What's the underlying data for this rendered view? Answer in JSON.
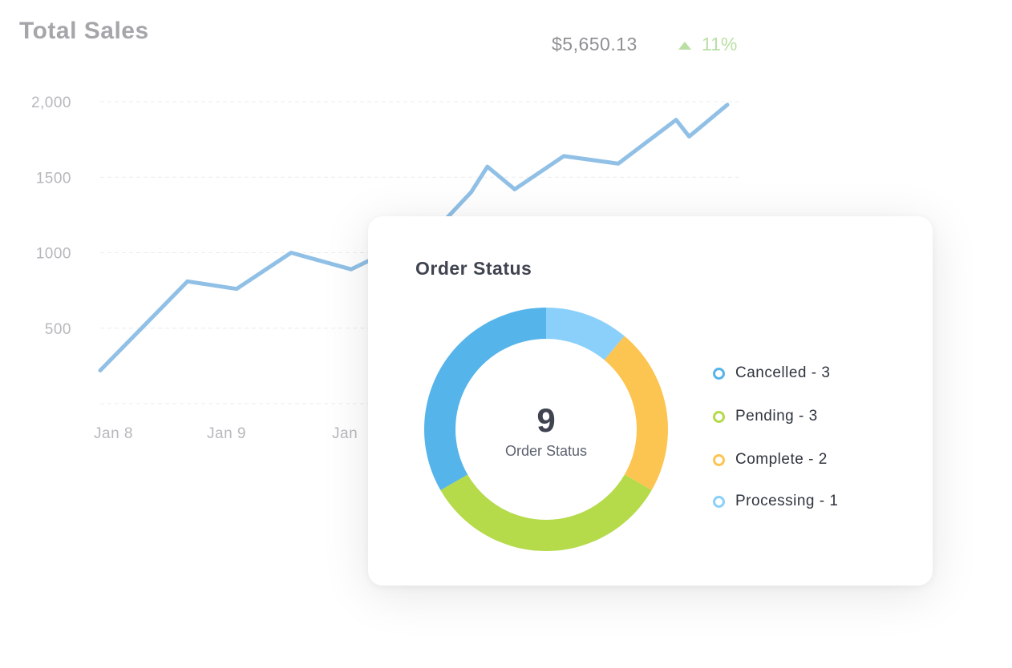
{
  "sales": {
    "title": "Total Sales",
    "total": "$5,650.13",
    "change": "11%",
    "line_color": "#91c0e6",
    "trend_color": "#b9dfa4"
  },
  "order_status": {
    "title": "Order Status",
    "center_value": "9",
    "center_label": "Order Status",
    "legend": [
      {
        "label": "Cancelled - 3",
        "color": "#55b4ea"
      },
      {
        "label": "Pending - 3",
        "color": "#b5da4a"
      },
      {
        "label": "Complete - 2",
        "color": "#fcc451"
      },
      {
        "label": "Processing - 1",
        "color": "#8ad0fb"
      }
    ]
  },
  "chart_data": [
    {
      "type": "line",
      "title": "Total Sales",
      "y_ticks": [
        "2,000",
        "1500",
        "1000",
        "500"
      ],
      "y_tick_values": [
        2000,
        1500,
        1000,
        500
      ],
      "ylim": [
        0,
        2000
      ],
      "x_tick_labels": [
        "Jan 8",
        "Jan 9",
        "Jan"
      ],
      "grid": true,
      "series": [
        {
          "values": [
            [
              0.0,
              220
            ],
            [
              0.8,
              810
            ],
            [
              1.25,
              760
            ],
            [
              1.75,
              1000
            ],
            [
              2.3,
              890
            ],
            [
              3.1,
              1170
            ],
            [
              3.4,
              1400
            ],
            [
              3.55,
              1570
            ],
            [
              3.8,
              1420
            ],
            [
              4.25,
              1640
            ],
            [
              4.75,
              1590
            ],
            [
              5.28,
              1880
            ],
            [
              5.4,
              1770
            ],
            [
              5.75,
              1980
            ]
          ]
        }
      ]
    },
    {
      "type": "pie",
      "title": "Order Status",
      "total": 9,
      "categories": [
        "Cancelled",
        "Pending",
        "Complete",
        "Processing"
      ],
      "values": [
        3,
        3,
        2,
        1
      ],
      "colors": [
        "#55b4ea",
        "#b5da4a",
        "#fcc451",
        "#8ad0fb"
      ]
    }
  ]
}
